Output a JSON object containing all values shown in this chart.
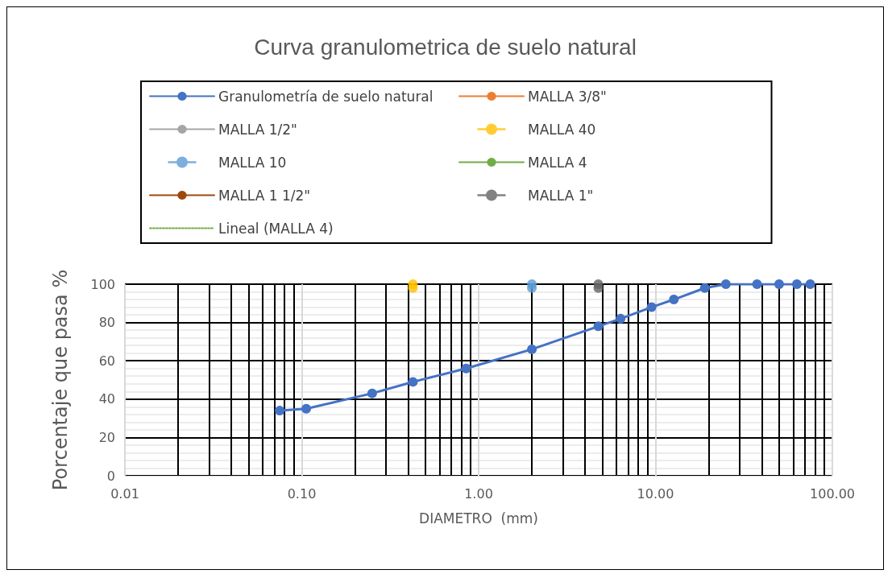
{
  "chart_data": {
    "type": "line",
    "title": "Curva granulometrica de suelo natural",
    "xlabel": "DIAMETRO  (mm)",
    "ylabel": "Porcentaje que pasa %",
    "log": "x",
    "xlim": [
      0.01,
      100
    ],
    "xticks": [
      0.01,
      {
        "value": 0.1,
        "label": "0.10"
      },
      {
        "value": 1,
        "label": "1.00"
      },
      {
        "value": 10,
        "label": "10.00"
      },
      {
        "value": 100,
        "label": "100.00"
      }
    ],
    "ylim": [
      0,
      100
    ],
    "yticks": [
      0,
      20,
      40,
      60,
      80,
      100
    ],
    "grid": true,
    "legend": "top",
    "marker": "circle",
    "line_style": "solid",
    "series": [
      {
        "name": "Granulometría de suelo natural",
        "color": "#4472c4",
        "x": [
          0.075,
          0.106,
          0.25,
          0.425,
          0.85,
          2.0,
          4.75,
          6.35,
          9.5,
          12.7,
          19,
          25,
          37.5,
          50,
          63,
          75
        ],
        "values": [
          34,
          35,
          43,
          49,
          56,
          66,
          78,
          82,
          88,
          92,
          98,
          100,
          100,
          100,
          100,
          100
        ]
      },
      {
        "name": "MALLA 3/8\"",
        "color": "#ed7d31",
        "x": [
          null
        ],
        "values": [
          null
        ]
      },
      {
        "name": "MALLA 1/2\"",
        "color": "#a5a5a5",
        "x": [
          null
        ],
        "values": [
          null
        ]
      },
      {
        "name": "MALLA 40",
        "color": "#ffc000",
        "type": "scatter",
        "x": [
          0.425,
          0.425
        ],
        "values": [
          98,
          100
        ]
      },
      {
        "name": "MALLA 10",
        "color": "#5b9bd5",
        "type": "scatter",
        "x": [
          2.0,
          2.0
        ],
        "values": [
          98,
          100
        ]
      },
      {
        "name": "MALLA 4",
        "color": "#70ad47",
        "x": [
          null
        ],
        "values": [
          null
        ]
      },
      {
        "name": "MALLA 1 1/2\"",
        "color": "#9e480e",
        "x": [
          null
        ],
        "values": [
          null
        ]
      },
      {
        "name": "MALLA 1\"",
        "color": "#636363",
        "type": "scatter",
        "x": [
          4.75,
          4.75
        ],
        "values": [
          98,
          100
        ]
      },
      {
        "name": "Lineal (MALLA 4)",
        "color": "#70ad47",
        "type": "line",
        "line_style": "dotted",
        "marker": "none",
        "x": [
          null
        ],
        "values": [
          null
        ]
      }
    ]
  }
}
